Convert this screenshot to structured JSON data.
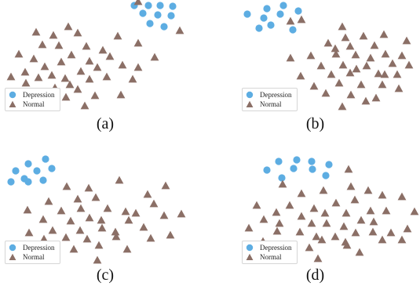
{
  "legend": {
    "depression": "Depression",
    "normal": "Normal"
  },
  "colors": {
    "depression": "#5dade2",
    "normal": "#8b6f66"
  },
  "chart_data": [
    {
      "type": "scatter",
      "caption": "(a)",
      "legend_placement": "bottom-left",
      "series": [
        {
          "name": "Depression",
          "marker": "circle",
          "points": [
            [
              171,
              7
            ],
            [
              189,
              7
            ],
            [
              204,
              7
            ],
            [
              220,
              8
            ],
            [
              182,
              17
            ],
            [
              201,
              19
            ],
            [
              218,
              20
            ],
            [
              191,
              30
            ],
            [
              209,
              34
            ]
          ]
        },
        {
          "name": "Normal",
          "marker": "triangle",
          "points": [
            [
              176,
              2
            ],
            [
              229,
              39
            ],
            [
              87,
              34
            ],
            [
              46,
              41
            ],
            [
              68,
              45
            ],
            [
              99,
              42
            ],
            [
              150,
              46
            ],
            [
              54,
              57
            ],
            [
              75,
              58
            ],
            [
              110,
              59
            ],
            [
              131,
              64
            ],
            [
              176,
              55
            ],
            [
              24,
              69
            ],
            [
              43,
              75
            ],
            [
              91,
              70
            ],
            [
              57,
              85
            ],
            [
              78,
              79
            ],
            [
              114,
              78
            ],
            [
              140,
              72
            ],
            [
              197,
              73
            ],
            [
              32,
              92
            ],
            [
              66,
              96
            ],
            [
              103,
              91
            ],
            [
              124,
              86
            ],
            [
              156,
              83
            ],
            [
              176,
              86
            ],
            [
              14,
              98
            ],
            [
              49,
              99
            ],
            [
              83,
              100
            ],
            [
              114,
              101
            ],
            [
              136,
              98
            ],
            [
              169,
              101
            ],
            [
              33,
              106
            ],
            [
              70,
              112
            ],
            [
              99,
              114
            ],
            [
              121,
              122
            ],
            [
              154,
              121
            ],
            [
              46,
              122
            ],
            [
              84,
              124
            ],
            [
              108,
              135
            ],
            [
              66,
              134
            ],
            [
              29,
              123
            ],
            [
              89,
              108
            ]
          ]
        }
      ]
    },
    {
      "type": "scatter",
      "caption": "(b)",
      "legend_placement": "bottom-left",
      "series": [
        {
          "name": "Depression",
          "marker": "circle",
          "points": [
            [
              361,
              7
            ],
            [
              340,
              11
            ],
            [
              315,
              18
            ],
            [
              336,
              23
            ],
            [
              357,
              18
            ],
            [
              380,
              14
            ],
            [
              345,
              32
            ],
            [
              330,
              36
            ],
            [
              373,
              38
            ]
          ]
        },
        {
          "name": "Normal",
          "marker": "triangle",
          "points": [
            [
              384,
              25
            ],
            [
              370,
              27
            ],
            [
              436,
              34
            ],
            [
              463,
              46
            ],
            [
              489,
              44
            ],
            [
              518,
              52
            ],
            [
              418,
              55
            ],
            [
              446,
              59
            ],
            [
              477,
              58
            ],
            [
              370,
              74
            ],
            [
              396,
              71
            ],
            [
              428,
              69
            ],
            [
              453,
              70
            ],
            [
              491,
              69
            ],
            [
              512,
              71
            ],
            [
              409,
              84
            ],
            [
              437,
              83
            ],
            [
              467,
              84
            ],
            [
              500,
              81
            ],
            [
              521,
              83
            ],
            [
              383,
              97
            ],
            [
              422,
              95
            ],
            [
              446,
              93
            ],
            [
              482,
              94
            ],
            [
              506,
              95
            ],
            [
              400,
              110
            ],
            [
              432,
              106
            ],
            [
              460,
              108
            ],
            [
              487,
              108
            ],
            [
              508,
              113
            ],
            [
              415,
              119
            ],
            [
              447,
              121
            ],
            [
              479,
              125
            ],
            [
              436,
              136
            ],
            [
              466,
              129
            ],
            [
              454,
              88
            ],
            [
              427,
              62
            ],
            [
              440,
              48
            ],
            [
              472,
              74
            ],
            [
              490,
              95
            ]
          ]
        }
      ]
    },
    {
      "type": "scatter",
      "caption": "(c)",
      "legend_placement": "bottom-left",
      "series": [
        {
          "name": "Depression",
          "marker": "circle",
          "points": [
            [
              36,
              209
            ],
            [
              58,
              203
            ],
            [
              20,
              218
            ],
            [
              47,
              218
            ],
            [
              66,
              215
            ],
            [
              31,
              228
            ],
            [
              14,
              232
            ],
            [
              36,
              232
            ],
            [
              55,
              230
            ]
          ]
        },
        {
          "name": "Normal",
          "marker": "triangle",
          "points": [
            [
              152,
              230
            ],
            [
              85,
              238
            ],
            [
              113,
              240
            ],
            [
              211,
              237
            ],
            [
              62,
              257
            ],
            [
              99,
              254
            ],
            [
              122,
              252
            ],
            [
              188,
              248
            ],
            [
              35,
              268
            ],
            [
              78,
              269
            ],
            [
              103,
              266
            ],
            [
              137,
              266
            ],
            [
              160,
              270
            ],
            [
              196,
              260
            ],
            [
              231,
              273
            ],
            [
              55,
              280
            ],
            [
              90,
              282
            ],
            [
              114,
              278
            ],
            [
              129,
              281
            ],
            [
              164,
              281
            ],
            [
              209,
              275
            ],
            [
              37,
              297
            ],
            [
              67,
              294
            ],
            [
              102,
              294
            ],
            [
              130,
              291
            ],
            [
              147,
              296
            ],
            [
              183,
              290
            ],
            [
              56,
              305
            ],
            [
              84,
              303
            ],
            [
              111,
              305
            ],
            [
              148,
              302
            ],
            [
              192,
              304
            ],
            [
              217,
              300
            ],
            [
              69,
              318
            ],
            [
              94,
              318
            ],
            [
              126,
              313
            ],
            [
              162,
              318
            ],
            [
              44,
              318
            ],
            [
              32,
              312
            ],
            [
              124,
              332
            ],
            [
              173,
              272
            ]
          ]
        }
      ]
    },
    {
      "type": "scatter",
      "caption": "(d)",
      "legend_placement": "bottom-left",
      "series": [
        {
          "name": "Depression",
          "marker": "circle",
          "points": [
            [
              355,
              206
            ],
            [
              378,
              204
            ],
            [
              397,
              206
            ],
            [
              419,
              210
            ],
            [
              340,
              217
            ],
            [
              374,
              215
            ],
            [
              398,
              216
            ],
            [
              359,
              227
            ],
            [
              415,
              224
            ]
          ]
        },
        {
          "name": "Normal",
          "marker": "triangle",
          "points": [
            [
              444,
              216
            ],
            [
              360,
              235
            ],
            [
              384,
              247
            ],
            [
              412,
              243
            ],
            [
              447,
              238
            ],
            [
              369,
              262
            ],
            [
              400,
              266
            ],
            [
              428,
              259
            ],
            [
              452,
              255
            ],
            [
              469,
              243
            ],
            [
              487,
              249
            ],
            [
              512,
              251
            ],
            [
              327,
              262
            ],
            [
              352,
              271
            ],
            [
              384,
              276
            ],
            [
              414,
              272
            ],
            [
              441,
              272
            ],
            [
              472,
              269
            ],
            [
              492,
              269
            ],
            [
              336,
              280
            ],
            [
              356,
              285
            ],
            [
              397,
              285
            ],
            [
              416,
              285
            ],
            [
              438,
              289
            ],
            [
              460,
              281
            ],
            [
              476,
              283
            ],
            [
              317,
              291
            ],
            [
              353,
              295
            ],
            [
              382,
              296
            ],
            [
              403,
              302
            ],
            [
              427,
              302
            ],
            [
              453,
              297
            ],
            [
              475,
              296
            ],
            [
              498,
              297
            ],
            [
              519,
              292
            ],
            [
              335,
              308
            ],
            [
              372,
              314
            ],
            [
              410,
              306
            ],
            [
              440,
              309
            ],
            [
              487,
              306
            ],
            [
              512,
              306
            ],
            [
              405,
              330
            ],
            [
              458,
              322
            ],
            [
              442,
              313
            ],
            [
              528,
              270
            ],
            [
              394,
              316
            ]
          ]
        }
      ]
    }
  ]
}
